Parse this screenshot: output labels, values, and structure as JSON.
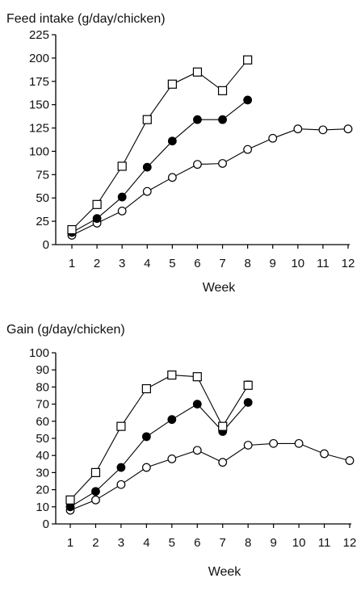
{
  "chart_data": [
    {
      "type": "line",
      "ylabel": "Feed intake (g/day/chicken)",
      "xlabel": "Week",
      "x_ticks": [
        1,
        2,
        3,
        4,
        5,
        6,
        7,
        8,
        9,
        10,
        11,
        12
      ],
      "y_ticks": [
        0,
        25,
        50,
        75,
        100,
        125,
        150,
        175,
        200,
        225
      ],
      "xlim": [
        1,
        12
      ],
      "ylim": [
        0,
        225
      ],
      "grid": false,
      "series": [
        {
          "marker": "open-square",
          "x": [
            1,
            2,
            3,
            4,
            5,
            6,
            7,
            8
          ],
          "values": [
            16,
            43,
            84,
            134,
            172,
            185,
            165,
            198
          ]
        },
        {
          "marker": "filled-circle",
          "x": [
            1,
            2,
            3,
            4,
            5,
            6,
            7,
            8
          ],
          "values": [
            13,
            28,
            51,
            83,
            111,
            134,
            134,
            155
          ]
        },
        {
          "marker": "open-circle",
          "x": [
            1,
            2,
            3,
            4,
            5,
            6,
            7,
            8,
            9,
            10,
            11,
            12
          ],
          "values": [
            10,
            23,
            36,
            57,
            72,
            86,
            87,
            102,
            114,
            124,
            123,
            124
          ]
        }
      ]
    },
    {
      "type": "line",
      "ylabel": "Gain (g/day/chicken)",
      "xlabel": "Week",
      "x_ticks": [
        1,
        2,
        3,
        4,
        5,
        6,
        7,
        8,
        9,
        10,
        11,
        12
      ],
      "y_ticks": [
        0,
        10,
        20,
        30,
        40,
        50,
        60,
        70,
        80,
        90,
        100
      ],
      "xlim": [
        1,
        12
      ],
      "ylim": [
        0,
        100
      ],
      "grid": false,
      "series": [
        {
          "marker": "open-square",
          "x": [
            1,
            2,
            3,
            4,
            5,
            6,
            7,
            8
          ],
          "values": [
            14,
            30,
            57,
            79,
            87,
            86,
            57,
            81
          ],
          "error": [
            0,
            0,
            0,
            0,
            1.2,
            0,
            0,
            2.5
          ]
        },
        {
          "marker": "filled-circle",
          "x": [
            1,
            2,
            3,
            4,
            5,
            6,
            7,
            8
          ],
          "values": [
            10,
            19,
            33,
            51,
            61,
            70,
            54,
            71
          ]
        },
        {
          "marker": "open-circle",
          "x": [
            1,
            2,
            3,
            4,
            5,
            6,
            7,
            8,
            9,
            10,
            11,
            12
          ],
          "values": [
            8,
            14,
            23,
            33,
            38,
            43,
            36,
            46,
            47,
            47,
            41,
            37
          ]
        }
      ]
    }
  ]
}
